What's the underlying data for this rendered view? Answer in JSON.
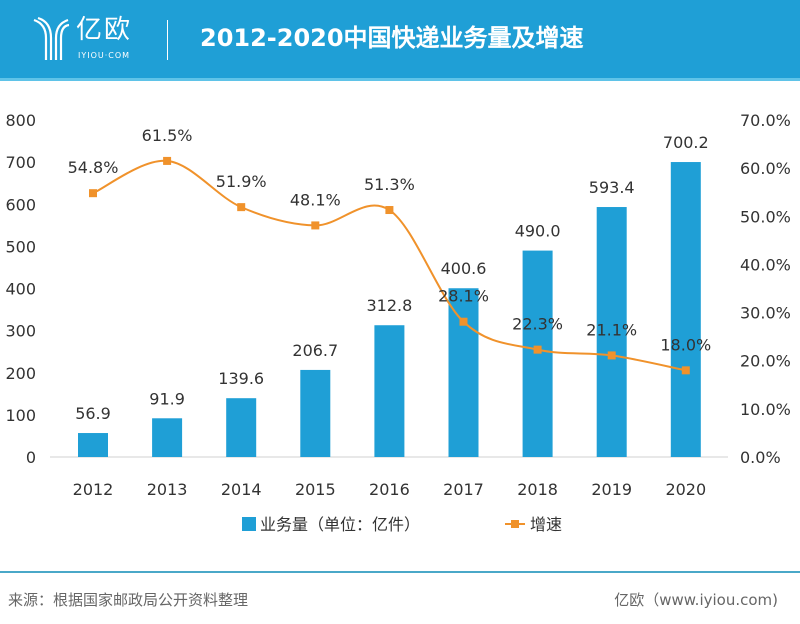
{
  "header": {
    "brand": "亿欧",
    "brand_sub": "IYIOU·COM",
    "title": "2012-2020中国快递业务量及增速"
  },
  "chart_data": {
    "type": "bar+line",
    "title": "2012-2020中国快递业务量及增速",
    "categories": [
      "2012",
      "2013",
      "2014",
      "2015",
      "2016",
      "2017",
      "2018",
      "2019",
      "2020"
    ],
    "series": [
      {
        "name": "业务量（单位：亿件）",
        "type": "bar",
        "axis": "left",
        "color": "#1f9fd6",
        "values": [
          56.9,
          91.9,
          139.6,
          206.7,
          312.8,
          400.6,
          490.0,
          593.4,
          700.2
        ],
        "labels": [
          "56.9",
          "91.9",
          "139.6",
          "206.7",
          "312.8",
          "400.6",
          "490.0",
          "593.4",
          "700.2"
        ]
      },
      {
        "name": "增速",
        "type": "line",
        "axis": "right",
        "color": "#f0922b",
        "values": [
          54.8,
          61.5,
          51.9,
          48.1,
          51.3,
          28.1,
          22.3,
          21.1,
          18.0
        ],
        "labels": [
          "54.8%",
          "61.5%",
          "51.9%",
          "48.1%",
          "51.3%",
          "28.1%",
          "22.3%",
          "21.1%",
          "18.0%"
        ]
      }
    ],
    "ylim": [
      0,
      800
    ],
    "yticks": [
      "0",
      "100",
      "200",
      "300",
      "400",
      "500",
      "600",
      "700",
      "800"
    ],
    "y2lim": [
      0,
      70
    ],
    "y2ticks": [
      "0.0%",
      "10.0%",
      "20.0%",
      "30.0%",
      "40.0%",
      "50.0%",
      "60.0%",
      "70.0%"
    ],
    "legend": "bottom"
  },
  "footer": {
    "source": "来源：根据国家邮政局公开资料整理",
    "credit": "亿欧（www.iyiou.com)"
  }
}
